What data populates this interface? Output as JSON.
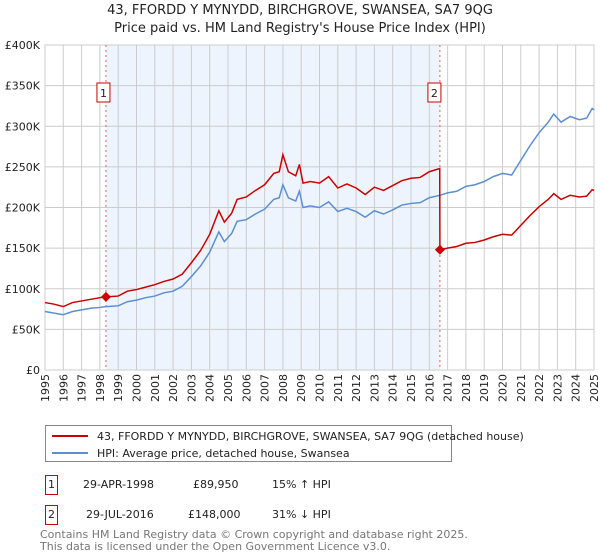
{
  "title": "43, FFORDD Y MYNYDD, BIRCHGROVE, SWANSEA, SA7 9QG",
  "subtitle": "Price paid vs. HM Land Registry's House Price Index (HPI)",
  "chart_data": {
    "type": "line",
    "xlim": [
      1995,
      2025
    ],
    "ylim": [
      0,
      400000
    ],
    "yticks": [
      {
        "v": 0,
        "label": "£0"
      },
      {
        "v": 50000,
        "label": "£50K"
      },
      {
        "v": 100000,
        "label": "£100K"
      },
      {
        "v": 150000,
        "label": "£150K"
      },
      {
        "v": 200000,
        "label": "£200K"
      },
      {
        "v": 250000,
        "label": "£250K"
      },
      {
        "v": 300000,
        "label": "£300K"
      },
      {
        "v": 350000,
        "label": "£350K"
      },
      {
        "v": 400000,
        "label": "£400K"
      }
    ],
    "xticks": [
      "1995",
      "1996",
      "1997",
      "1998",
      "1999",
      "2000",
      "2001",
      "2002",
      "2003",
      "2004",
      "2005",
      "2006",
      "2007",
      "2008",
      "2009",
      "2010",
      "2011",
      "2012",
      "2013",
      "2014",
      "2015",
      "2016",
      "2017",
      "2018",
      "2019",
      "2020",
      "2021",
      "2022",
      "2023",
      "2024",
      "2025"
    ],
    "grid": true,
    "shaded_range": [
      1998.33,
      2016.58
    ],
    "colors": {
      "property": "#cc0000",
      "hpi": "#5b8fd0",
      "shade": "#eef4fd"
    },
    "series": [
      {
        "name": "43, FFORDD Y MYNYDD, BIRCHGROVE, SWANSEA, SA7 9QG (detached house)",
        "key": "property",
        "points": [
          [
            1995,
            83
          ],
          [
            1995.5,
            81
          ],
          [
            1996,
            78
          ],
          [
            1996.5,
            83
          ],
          [
            1997,
            85
          ],
          [
            1997.5,
            87
          ],
          [
            1998,
            89
          ],
          [
            1998.33,
            89.95
          ],
          [
            1999,
            91
          ],
          [
            1999.5,
            97
          ],
          [
            2000,
            99
          ],
          [
            2000.5,
            102
          ],
          [
            2001,
            105
          ],
          [
            2001.5,
            109
          ],
          [
            2002,
            112
          ],
          [
            2002.5,
            118
          ],
          [
            2003,
            132
          ],
          [
            2003.5,
            147
          ],
          [
            2004,
            167
          ],
          [
            2004.5,
            196
          ],
          [
            2004.8,
            182
          ],
          [
            2005.2,
            193
          ],
          [
            2005.5,
            210
          ],
          [
            2006,
            213
          ],
          [
            2006.5,
            221
          ],
          [
            2007,
            228
          ],
          [
            2007.5,
            242
          ],
          [
            2007.8,
            244
          ],
          [
            2008,
            265
          ],
          [
            2008.3,
            244
          ],
          [
            2008.7,
            239
          ],
          [
            2008.9,
            253
          ],
          [
            2009.1,
            230
          ],
          [
            2009.5,
            232
          ],
          [
            2010,
            230
          ],
          [
            2010.5,
            238
          ],
          [
            2011,
            224
          ],
          [
            2011.5,
            229
          ],
          [
            2012,
            224
          ],
          [
            2012.5,
            216
          ],
          [
            2013,
            225
          ],
          [
            2013.5,
            221
          ],
          [
            2014,
            227
          ],
          [
            2014.5,
            233
          ],
          [
            2015,
            236
          ],
          [
            2015.5,
            237
          ],
          [
            2016,
            244
          ],
          [
            2016.57,
            248
          ],
          [
            2016.58,
            148
          ],
          [
            2017,
            150
          ],
          [
            2017.5,
            152
          ],
          [
            2018,
            156
          ],
          [
            2018.5,
            157
          ],
          [
            2019,
            160
          ],
          [
            2019.5,
            164
          ],
          [
            2020,
            167
          ],
          [
            2020.5,
            166
          ],
          [
            2021,
            178
          ],
          [
            2021.5,
            190
          ],
          [
            2022,
            201
          ],
          [
            2022.5,
            210
          ],
          [
            2022.8,
            217
          ],
          [
            2023.2,
            210
          ],
          [
            2023.7,
            215
          ],
          [
            2024.2,
            213
          ],
          [
            2024.6,
            214
          ],
          [
            2024.9,
            222
          ],
          [
            2025,
            221
          ]
        ]
      },
      {
        "name": "HPI: Average price, detached house, Swansea",
        "key": "hpi",
        "points": [
          [
            1995,
            72
          ],
          [
            1995.5,
            70
          ],
          [
            1996,
            68
          ],
          [
            1996.5,
            72
          ],
          [
            1997,
            74
          ],
          [
            1997.5,
            76
          ],
          [
            1998,
            77
          ],
          [
            1998.33,
            78
          ],
          [
            1999,
            79
          ],
          [
            1999.5,
            84
          ],
          [
            2000,
            86
          ],
          [
            2000.5,
            89
          ],
          [
            2001,
            91
          ],
          [
            2001.5,
            95
          ],
          [
            2002,
            97
          ],
          [
            2002.5,
            103
          ],
          [
            2003,
            115
          ],
          [
            2003.5,
            128
          ],
          [
            2004,
            145
          ],
          [
            2004.5,
            170
          ],
          [
            2004.8,
            158
          ],
          [
            2005.2,
            168
          ],
          [
            2005.5,
            183
          ],
          [
            2006,
            185
          ],
          [
            2006.5,
            192
          ],
          [
            2007,
            198
          ],
          [
            2007.5,
            210
          ],
          [
            2007.8,
            212
          ],
          [
            2008,
            228
          ],
          [
            2008.3,
            212
          ],
          [
            2008.7,
            208
          ],
          [
            2008.9,
            220
          ],
          [
            2009.1,
            200
          ],
          [
            2009.5,
            202
          ],
          [
            2010,
            200
          ],
          [
            2010.5,
            207
          ],
          [
            2011,
            195
          ],
          [
            2011.5,
            199
          ],
          [
            2012,
            195
          ],
          [
            2012.5,
            188
          ],
          [
            2013,
            196
          ],
          [
            2013.5,
            192
          ],
          [
            2014,
            197
          ],
          [
            2014.5,
            203
          ],
          [
            2015,
            205
          ],
          [
            2015.5,
            206
          ],
          [
            2016,
            212
          ],
          [
            2016.58,
            215
          ],
          [
            2017,
            218
          ],
          [
            2017.5,
            220
          ],
          [
            2018,
            226
          ],
          [
            2018.5,
            228
          ],
          [
            2019,
            232
          ],
          [
            2019.5,
            238
          ],
          [
            2020,
            242
          ],
          [
            2020.5,
            240
          ],
          [
            2021,
            258
          ],
          [
            2021.5,
            276
          ],
          [
            2022,
            292
          ],
          [
            2022.5,
            305
          ],
          [
            2022.8,
            315
          ],
          [
            2023.2,
            305
          ],
          [
            2023.7,
            312
          ],
          [
            2024.2,
            308
          ],
          [
            2024.6,
            310
          ],
          [
            2024.9,
            322
          ],
          [
            2025,
            320
          ]
        ]
      }
    ],
    "units_note": "values in £ thousands",
    "sales": [
      {
        "label": "1",
        "x": 1998.33,
        "y": 89.95
      },
      {
        "label": "2",
        "x": 2016.58,
        "y": 148
      }
    ]
  },
  "legend": {
    "property": "43, FFORDD Y MYNYDD, BIRCHGROVE, SWANSEA, SA7 9QG (detached house)",
    "hpi": "HPI: Average price, detached house, Swansea"
  },
  "transactions": [
    {
      "num": "1",
      "date": "29-APR-1998",
      "price": "£89,950",
      "hpi": "15% ↑ HPI"
    },
    {
      "num": "2",
      "date": "29-JUL-2016",
      "price": "£148,000",
      "hpi": "31% ↓ HPI"
    }
  ],
  "footer": {
    "line1": "Contains HM Land Registry data © Crown copyright and database right 2025.",
    "line2": "This data is licensed under the Open Government Licence v3.0."
  }
}
